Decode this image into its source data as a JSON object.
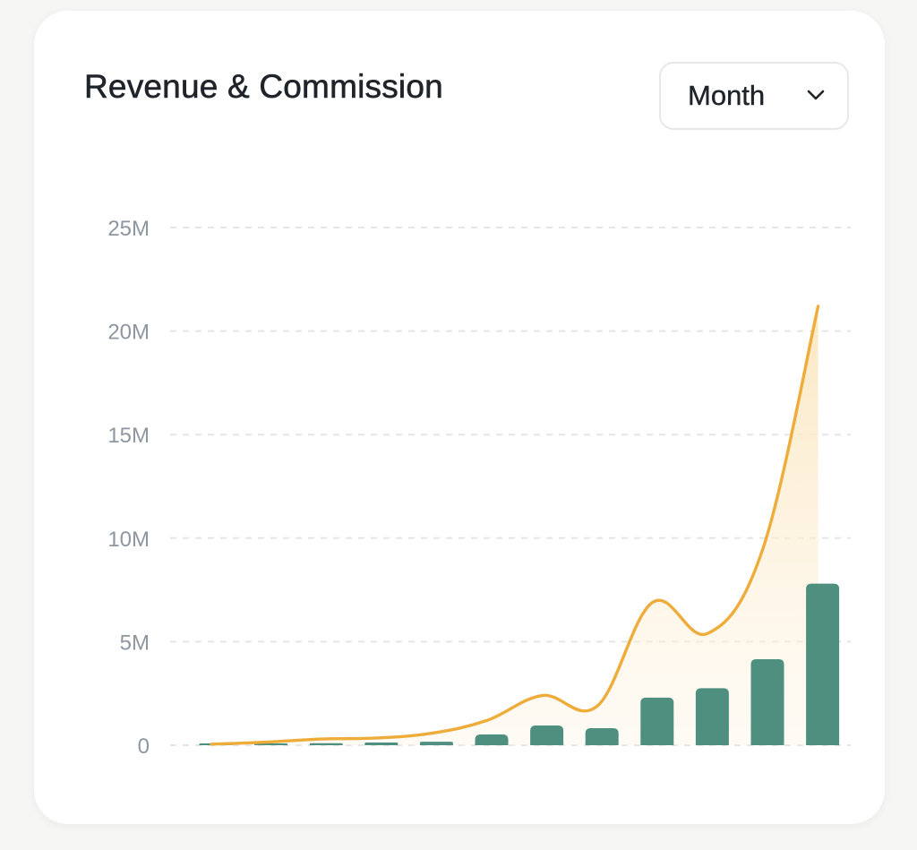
{
  "header": {
    "title": "Revenue & Commission",
    "period_selector": {
      "selected": "Month",
      "icon": "chevron-down-icon"
    }
  },
  "chart_data": {
    "type": "bar",
    "title": "Revenue & Commission",
    "xlabel": "",
    "ylabel": "",
    "ylim": [
      0,
      25000000
    ],
    "y_ticks": [
      0,
      5000000,
      10000000,
      15000000,
      20000000,
      25000000
    ],
    "y_tick_labels": [
      "0",
      "5M",
      "10M",
      "15M",
      "20M",
      "25M"
    ],
    "grid": true,
    "legend": "none",
    "categories_count": 12,
    "series": [
      {
        "type": "bar",
        "color": "#4e8f7f",
        "values": [
          30000,
          80000,
          100000,
          130000,
          170000,
          520000,
          950000,
          820000,
          2300000,
          2750000,
          4150000,
          7800000
        ]
      },
      {
        "type": "area",
        "color": "#eeac3b",
        "fill": "#fdf2dd",
        "values": [
          50000,
          150000,
          300000,
          350000,
          580000,
          1200000,
          2400000,
          1900000,
          6900000,
          5400000,
          9500000,
          21200000
        ]
      }
    ]
  }
}
